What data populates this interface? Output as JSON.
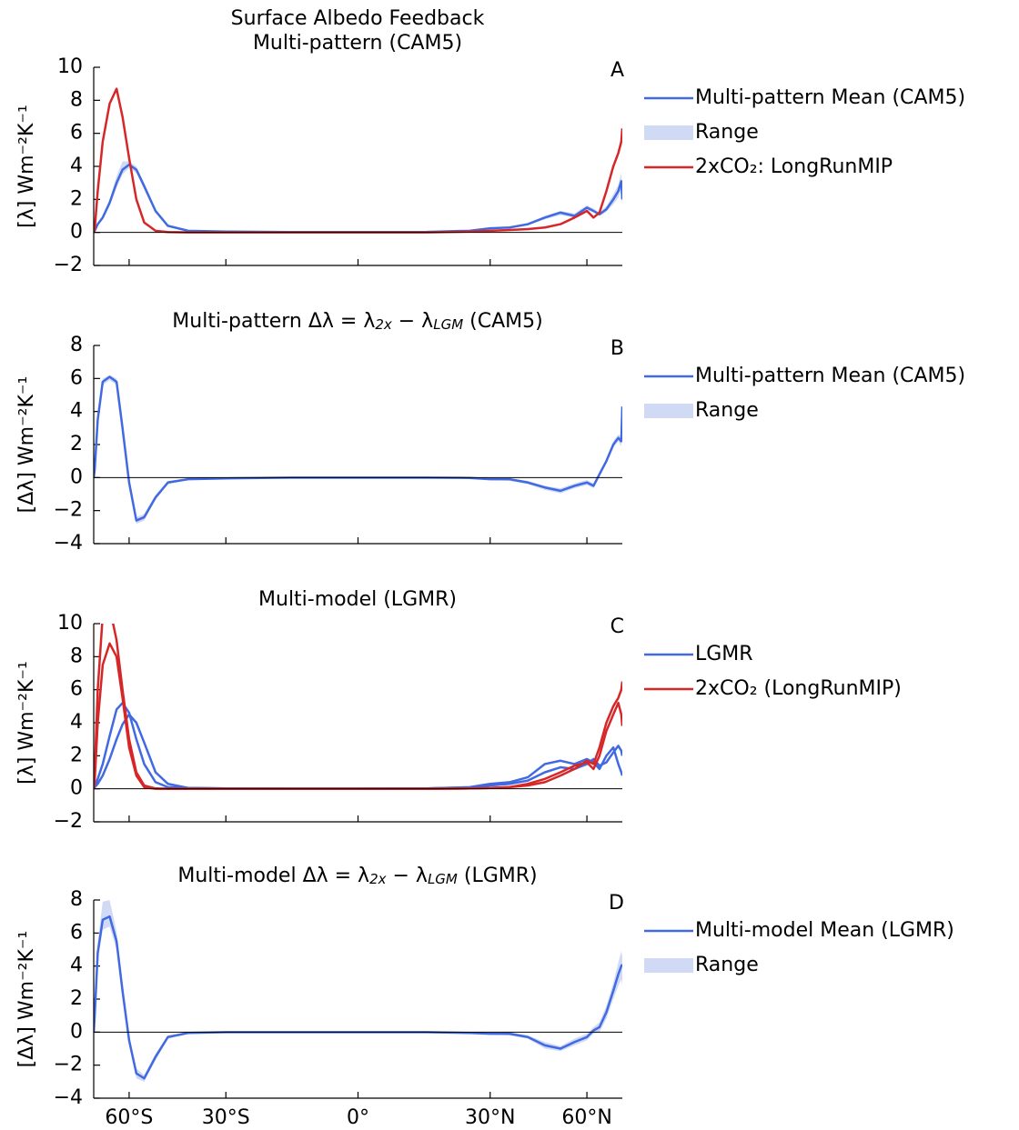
{
  "chart_data": [
    {
      "type": "line",
      "title": [
        [
          "Surface Albedo Feedback"
        ],
        [
          "Multi-pattern (CAM5)"
        ]
      ],
      "panel_label": "A",
      "ylabel": "[λ] Wm⁻²K⁻¹",
      "xscale": "sine",
      "xlim": [
        -90,
        90
      ],
      "xticks": [
        -60,
        -30,
        0,
        30,
        60
      ],
      "show_xtick_labels": false,
      "ylim": [
        -2,
        10
      ],
      "yticks": [
        {
          "value": -2,
          "label": "−2"
        },
        0,
        2,
        4,
        6,
        8,
        10
      ],
      "hline": 0,
      "x": [
        -89,
        -85,
        -80,
        -75,
        -70,
        -66,
        -63,
        -60,
        -57,
        -54,
        -50,
        -46,
        -40,
        -30,
        -15,
        0,
        15,
        25,
        30,
        35,
        40,
        45,
        50,
        55,
        60,
        63,
        66,
        70,
        75,
        80,
        85,
        89
      ],
      "series": [
        {
          "name": "Multi-pattern Mean (CAM5)",
          "color": "#4169e1",
          "values": [
            0,
            0.1,
            0.5,
            0.9,
            1.8,
            3.0,
            3.8,
            4.1,
            3.8,
            2.8,
            1.3,
            0.4,
            0.1,
            0.05,
            0.02,
            0.02,
            0.03,
            0.1,
            0.25,
            0.3,
            0.5,
            0.9,
            1.2,
            1.0,
            1.5,
            1.3,
            1.1,
            1.4,
            2.0,
            2.5,
            3.1,
            2.0
          ]
        },
        {
          "name": "Range",
          "color": "#d0daf5",
          "lower": [
            0,
            0.05,
            0.4,
            0.8,
            1.6,
            2.7,
            3.5,
            3.9,
            3.6,
            2.6,
            1.2,
            0.35,
            0.08,
            0.04,
            0.01,
            0.01,
            0.02,
            0.08,
            0.2,
            0.25,
            0.45,
            0.8,
            1.05,
            0.9,
            1.35,
            1.2,
            1.0,
            1.25,
            1.7,
            2.1,
            2.6,
            1.6
          ],
          "upper": [
            0,
            0.15,
            0.6,
            1.0,
            2.0,
            3.4,
            4.3,
            4.3,
            4.0,
            3.0,
            1.4,
            0.45,
            0.12,
            0.06,
            0.03,
            0.03,
            0.04,
            0.12,
            0.3,
            0.35,
            0.55,
            1.0,
            1.3,
            1.15,
            1.65,
            1.45,
            1.2,
            1.6,
            2.3,
            2.9,
            3.6,
            2.4
          ]
        },
        {
          "name": "2xCO₂: LongRunMIP",
          "color": "#d62728",
          "values": [
            0,
            0.2,
            2.5,
            5.5,
            7.8,
            8.7,
            7.0,
            4.5,
            2.0,
            0.6,
            0.1,
            0.02,
            0,
            0,
            0,
            0,
            0,
            0.05,
            0.1,
            0.15,
            0.2,
            0.3,
            0.5,
            0.9,
            1.3,
            0.9,
            1.2,
            2.5,
            4.0,
            4.8,
            5.5,
            6.3
          ]
        }
      ]
    },
    {
      "type": "line",
      "title": [
        [
          "Multi-pattern Δλ = λ",
          "2x",
          " − λ",
          "LGM",
          " (CAM5)"
        ]
      ],
      "panel_label": "B",
      "ylabel": "[Δλ] Wm⁻²K⁻¹",
      "xscale": "sine",
      "xlim": [
        -90,
        90
      ],
      "xticks": [
        -60,
        -30,
        0,
        30,
        60
      ],
      "show_xtick_labels": false,
      "ylim": [
        -4,
        8
      ],
      "yticks": [
        {
          "value": -4,
          "label": "−4"
        },
        {
          "value": -2,
          "label": "−2"
        },
        0,
        2,
        4,
        6,
        8
      ],
      "hline": 0,
      "x": [
        -89,
        -85,
        -80,
        -75,
        -70,
        -66,
        -63,
        -60,
        -57,
        -54,
        -50,
        -46,
        -40,
        -30,
        -15,
        0,
        15,
        25,
        30,
        35,
        40,
        45,
        50,
        55,
        60,
        63,
        66,
        70,
        75,
        80,
        85,
        89
      ],
      "series": [
        {
          "name": "Multi-pattern Mean (CAM5)",
          "color": "#4169e1",
          "values": [
            0,
            0.5,
            3.5,
            5.8,
            6.1,
            5.8,
            3.0,
            -0.3,
            -2.6,
            -2.4,
            -1.2,
            -0.3,
            -0.1,
            -0.05,
            0,
            0,
            0,
            -0.02,
            -0.1,
            -0.1,
            -0.3,
            -0.6,
            -0.8,
            -0.5,
            -0.3,
            -0.5,
            0.2,
            1.0,
            2.0,
            2.4,
            2.2,
            4.3
          ]
        },
        {
          "name": "Range",
          "color": "#d0daf5",
          "lower": [
            0,
            0.4,
            3.3,
            5.6,
            5.9,
            5.6,
            2.8,
            -0.5,
            -2.8,
            -2.6,
            -1.35,
            -0.4,
            -0.15,
            -0.07,
            -0.02,
            -0.02,
            -0.02,
            -0.05,
            -0.15,
            -0.2,
            -0.4,
            -0.75,
            -0.95,
            -0.65,
            -0.45,
            -0.65,
            0.05,
            0.85,
            1.8,
            2.2,
            1.9,
            3.8
          ],
          "upper": [
            0,
            0.6,
            3.7,
            6.0,
            6.2,
            6.0,
            3.2,
            -0.1,
            -2.4,
            -2.2,
            -1.05,
            -0.2,
            -0.05,
            -0.03,
            0.02,
            0.02,
            0.02,
            0.01,
            -0.05,
            -0.05,
            -0.2,
            -0.5,
            -0.65,
            -0.35,
            -0.15,
            -0.35,
            0.35,
            1.15,
            2.2,
            2.6,
            2.5,
            4.6
          ]
        }
      ]
    },
    {
      "type": "line",
      "title": [
        [
          "Multi-model (LGMR)"
        ]
      ],
      "panel_label": "C",
      "ylabel": "[λ] Wm⁻²K⁻¹",
      "xscale": "sine",
      "xlim": [
        -90,
        90
      ],
      "xticks": [
        -60,
        -30,
        0,
        30,
        60
      ],
      "show_xtick_labels": false,
      "ylim": [
        -2,
        10
      ],
      "yticks": [
        {
          "value": -2,
          "label": "−2"
        },
        0,
        2,
        4,
        6,
        8,
        10
      ],
      "hline": 0,
      "x": [
        -89,
        -85,
        -80,
        -75,
        -70,
        -66,
        -63,
        -60,
        -57,
        -54,
        -50,
        -46,
        -40,
        -30,
        -15,
        0,
        15,
        25,
        30,
        35,
        40,
        45,
        50,
        55,
        60,
        63,
        66,
        70,
        75,
        80,
        85,
        89
      ],
      "series": [
        {
          "name": "LGMR",
          "color": "#4169e1",
          "lines": [
            [
              0,
              0.1,
              0.6,
              1.5,
              3.2,
              4.8,
              5.2,
              4.6,
              3.0,
              1.5,
              0.4,
              0.1,
              0.05,
              0.02,
              0.01,
              0.01,
              0.02,
              0.1,
              0.3,
              0.4,
              0.7,
              1.5,
              1.7,
              1.5,
              1.8,
              1.6,
              1.2,
              2.0,
              2.5,
              1.5,
              1.0,
              0.8
            ],
            [
              0,
              0.1,
              0.3,
              0.8,
              1.8,
              3.0,
              3.9,
              4.5,
              4.0,
              2.8,
              1.0,
              0.3,
              0.05,
              0.02,
              0.01,
              0.01,
              0.02,
              0.08,
              0.2,
              0.3,
              0.5,
              1.0,
              1.3,
              1.2,
              1.5,
              1.8,
              1.4,
              1.6,
              2.2,
              2.6,
              2.3,
              2.0
            ]
          ]
        },
        {
          "name": "2xCO₂ (LongRunMIP)",
          "color": "#d62728",
          "lines": [
            [
              0,
              0.5,
              4.0,
              7.5,
              8.8,
              8.0,
              5.5,
              2.5,
              0.8,
              0.1,
              0,
              0,
              0,
              0,
              0,
              0,
              0,
              0.02,
              0.05,
              0.1,
              0.2,
              0.4,
              0.8,
              1.2,
              1.7,
              1.5,
              2.5,
              4.0,
              5.0,
              5.5,
              6.0,
              6.5
            ],
            [
              0,
              1.0,
              6.0,
              10.5,
              11.0,
              9.0,
              6.0,
              3.0,
              1.0,
              0.2,
              0.02,
              0,
              0,
              0,
              0,
              0,
              0,
              0.02,
              0.05,
              0.1,
              0.3,
              0.6,
              1.0,
              1.4,
              1.6,
              1.2,
              2.0,
              3.5,
              4.5,
              5.2,
              4.5,
              3.8
            ]
          ]
        }
      ]
    },
    {
      "type": "line",
      "title": [
        [
          "Multi-model Δλ = λ",
          "2x",
          " − λ",
          "LGM",
          " (LGMR)"
        ]
      ],
      "panel_label": "D",
      "ylabel": "[Δλ] Wm⁻²K⁻¹",
      "xscale": "sine",
      "xlim": [
        -90,
        90
      ],
      "xticks": [
        {
          "value": -60,
          "label": "60°S"
        },
        {
          "value": -30,
          "label": "30°S"
        },
        {
          "value": 0,
          "label": "0°"
        },
        {
          "value": 30,
          "label": "30°N"
        },
        {
          "value": 60,
          "label": "60°N"
        }
      ],
      "show_xtick_labels": true,
      "ylim": [
        -4,
        8
      ],
      "yticks": [
        {
          "value": -4,
          "label": "−4"
        },
        {
          "value": -2,
          "label": "−2"
        },
        0,
        2,
        4,
        6,
        8
      ],
      "hline": 0,
      "x": [
        -89,
        -85,
        -80,
        -75,
        -70,
        -66,
        -63,
        -60,
        -57,
        -54,
        -50,
        -46,
        -40,
        -30,
        -15,
        0,
        15,
        25,
        30,
        35,
        40,
        45,
        50,
        55,
        60,
        63,
        66,
        70,
        75,
        80,
        85,
        89
      ],
      "series": [
        {
          "name": "Multi-model Mean (LGMR)",
          "color": "#4169e1",
          "values": [
            0,
            1.0,
            4.8,
            6.8,
            7.0,
            5.5,
            2.5,
            -0.5,
            -2.5,
            -2.8,
            -1.5,
            -0.3,
            -0.05,
            0,
            0,
            0,
            0,
            -0.05,
            -0.1,
            -0.1,
            -0.3,
            -0.8,
            -1.0,
            -0.6,
            -0.3,
            0.1,
            0.3,
            1.2,
            2.5,
            3.5,
            4.0,
            4.1
          ]
        },
        {
          "name": "Range",
          "color": "#d0daf5",
          "lower": [
            0,
            0.7,
            4.3,
            6.2,
            6.4,
            5.0,
            2.1,
            -0.8,
            -2.8,
            -3.0,
            -1.7,
            -0.4,
            -0.1,
            -0.03,
            -0.02,
            -0.02,
            -0.02,
            -0.08,
            -0.15,
            -0.2,
            -0.4,
            -1.0,
            -1.15,
            -0.8,
            -0.5,
            -0.1,
            0.0,
            0.8,
            2.0,
            2.8,
            3.2,
            2.8
          ],
          "upper": [
            0,
            1.3,
            5.4,
            7.9,
            8.0,
            6.1,
            2.9,
            -0.2,
            -2.2,
            -2.6,
            -1.3,
            -0.2,
            0,
            0.03,
            0.02,
            0.02,
            0.02,
            -0.02,
            -0.05,
            0,
            -0.2,
            -0.6,
            -0.85,
            -0.4,
            -0.1,
            0.3,
            0.6,
            1.6,
            3.0,
            4.2,
            4.9,
            4.6
          ]
        }
      ]
    }
  ]
}
